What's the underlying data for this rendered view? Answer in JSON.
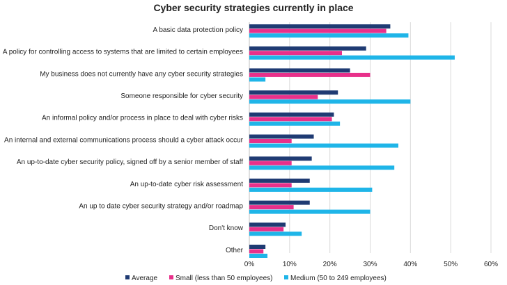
{
  "chart_data": {
    "type": "bar",
    "orientation": "horizontal",
    "title": "Cyber security strategies currently in place",
    "categories": [
      "A basic data protection policy",
      "A policy for controlling access to systems that are limited to certain employees",
      "My business does not currently have any cyber security strategies",
      "Someone responsible for cyber security",
      "An informal policy and/or process in place to deal with cyber risks",
      "An internal and external communications process should a cyber attack occur",
      "An up-to-date cyber security policy, signed off by a senior member of staff",
      "An up-to-date cyber risk assessment",
      "An up to date cyber security strategy and/or roadmap",
      "Don't know",
      "Other"
    ],
    "series": [
      {
        "name": "Average",
        "color": "#1f3b73",
        "values": [
          35,
          29,
          25,
          22,
          21,
          16,
          15.5,
          15,
          15,
          9,
          4
        ]
      },
      {
        "name": "Small (less than 50 employees)",
        "color": "#e8308a",
        "values": [
          34,
          23,
          30,
          17,
          20.5,
          10.5,
          10.5,
          10.5,
          11,
          8.5,
          3.5
        ]
      },
      {
        "name": "Medium (50 to 249 employees)",
        "color": "#1fb5e8",
        "values": [
          39.5,
          51,
          4,
          40,
          22.5,
          37,
          36,
          30.5,
          30,
          13,
          4.5
        ]
      }
    ],
    "x_ticks": [
      "0%",
      "10%",
      "20%",
      "30%",
      "40%",
      "50%",
      "60%"
    ],
    "xlim": [
      0,
      60
    ],
    "grid": true,
    "legend_position": "bottom"
  }
}
